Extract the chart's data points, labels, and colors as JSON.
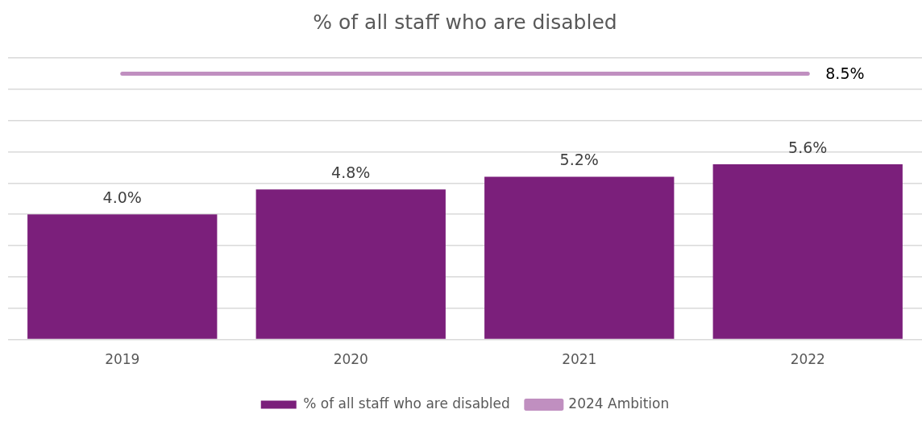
{
  "chart_data": {
    "type": "bar",
    "title": "% of all staff who are disabled",
    "categories": [
      "2019",
      "2020",
      "2021",
      "2022"
    ],
    "series": [
      {
        "name": "% of all staff who are disabled",
        "color": "#7b1f7b",
        "values": [
          4.0,
          4.8,
          5.2,
          5.6
        ],
        "value_labels": [
          "4.0%",
          "4.8%",
          "5.2%",
          "5.6%"
        ]
      },
      {
        "name": "2024 Ambition",
        "type": "line",
        "color": "#c08fc0",
        "values": [
          8.5,
          8.5,
          8.5,
          8.5
        ],
        "value_labels": [
          null,
          null,
          null,
          "8.5%"
        ]
      }
    ],
    "ylim": [
      0,
      9
    ],
    "yticks": [
      {
        "value": 0,
        "label": null
      },
      {
        "value": 1,
        "label": null
      },
      {
        "value": 2,
        "label": null
      },
      {
        "value": 3,
        "label": null
      },
      {
        "value": 4,
        "label": null
      },
      {
        "value": 5,
        "label": null
      },
      {
        "value": 6,
        "label": null
      },
      {
        "value": 7,
        "label": null
      },
      {
        "value": 8,
        "label": null
      },
      {
        "value": 9,
        "label": null
      }
    ],
    "tick_labels": "x",
    "grid": "y",
    "legend": "bottom",
    "marker": "none"
  }
}
